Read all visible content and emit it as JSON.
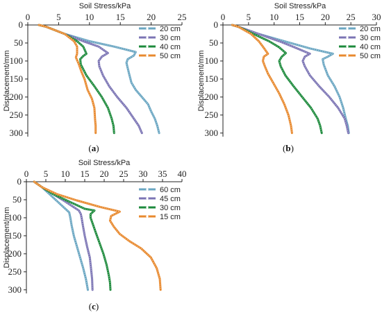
{
  "chart_data": [
    {
      "type": "line",
      "panel_label": "(a)",
      "xlabel": "Soil Stress/kPa",
      "ylabel": "Displacement/mm",
      "xlim": [
        0,
        25
      ],
      "ylim": [
        0,
        310
      ],
      "xticks": [
        0,
        5,
        10,
        15,
        20,
        25
      ],
      "yticks": [
        0,
        50,
        100,
        150,
        200,
        250,
        300
      ],
      "legend_position": "top-right",
      "series": [
        {
          "name": "20 cm",
          "color": "#6aa6c2",
          "points": [
            [
              1.8,
              0
            ],
            [
              3,
              5
            ],
            [
              6,
              25
            ],
            [
              10,
              45
            ],
            [
              14,
              60
            ],
            [
              17.5,
              75
            ],
            [
              17.2,
              85
            ],
            [
              16.2,
              95
            ],
            [
              16,
              105
            ],
            [
              16.2,
              120
            ],
            [
              16.5,
              140
            ],
            [
              16.8,
              160
            ],
            [
              17.5,
              180
            ],
            [
              18.5,
              200
            ],
            [
              19.5,
              220
            ],
            [
              20,
              240
            ],
            [
              20.6,
              260
            ],
            [
              21,
              280
            ],
            [
              21.3,
              300
            ]
          ]
        },
        {
          "name": "30 cm",
          "color": "#7b74b4",
          "points": [
            [
              1.8,
              0
            ],
            [
              3,
              5
            ],
            [
              6,
              25
            ],
            [
              9,
              45
            ],
            [
              11.5,
              60
            ],
            [
              13,
              78
            ],
            [
              12,
              88
            ],
            [
              11.5,
              100
            ],
            [
              11.6,
              115
            ],
            [
              12.2,
              140
            ],
            [
              13.2,
              170
            ],
            [
              14.5,
              200
            ],
            [
              16,
              230
            ],
            [
              17.2,
              260
            ],
            [
              18,
              280
            ],
            [
              18.5,
              300
            ]
          ]
        },
        {
          "name": "40 cm",
          "color": "#1d8a3c",
          "points": [
            [
              1.8,
              0
            ],
            [
              3,
              5
            ],
            [
              6,
              25
            ],
            [
              8,
              45
            ],
            [
              9,
              60
            ],
            [
              9.5,
              80
            ],
            [
              9,
              86
            ],
            [
              8.5,
              95
            ],
            [
              8.6,
              110
            ],
            [
              9.5,
              140
            ],
            [
              10.8,
              170
            ],
            [
              12,
              200
            ],
            [
              13,
              230
            ],
            [
              13.6,
              260
            ],
            [
              13.9,
              280
            ],
            [
              14,
              300
            ]
          ]
        },
        {
          "name": "50 cm",
          "color": "#e8892e",
          "points": [
            [
              1.8,
              0
            ],
            [
              3,
              5
            ],
            [
              6,
              25
            ],
            [
              7.5,
              45
            ],
            [
              8,
              60
            ],
            [
              8,
              80
            ],
            [
              7.8,
              90
            ],
            [
              8.3,
              110
            ],
            [
              8.7,
              130
            ],
            [
              9.2,
              150
            ],
            [
              9.7,
              180
            ],
            [
              10.4,
              205
            ],
            [
              10.8,
              230
            ],
            [
              10.9,
              260
            ],
            [
              11,
              280
            ],
            [
              11,
              300
            ]
          ]
        }
      ]
    },
    {
      "type": "line",
      "panel_label": "(b)",
      "xlabel": "Soil Stress/kPa",
      "ylabel": "Displacement/mm",
      "xlim": [
        0,
        30
      ],
      "ylim": [
        0,
        310
      ],
      "xticks": [
        0,
        5,
        10,
        15,
        20,
        25,
        30
      ],
      "yticks": [
        0,
        50,
        100,
        150,
        200,
        250,
        300
      ],
      "legend_position": "top-right",
      "series": [
        {
          "name": "20 cm",
          "color": "#6aa6c2",
          "points": [
            [
              1.8,
              0
            ],
            [
              3,
              5
            ],
            [
              7,
              25
            ],
            [
              12,
              45
            ],
            [
              17,
              65
            ],
            [
              21.5,
              80
            ],
            [
              20.5,
              88
            ],
            [
              19.5,
              95
            ],
            [
              19.7,
              110
            ],
            [
              20.5,
              140
            ],
            [
              21.8,
              170
            ],
            [
              22.8,
              200
            ],
            [
              23.5,
              230
            ],
            [
              24,
              260
            ],
            [
              24.4,
              280
            ],
            [
              24.6,
              300
            ]
          ]
        },
        {
          "name": "30 cm",
          "color": "#7b74b4",
          "points": [
            [
              1.8,
              0
            ],
            [
              3,
              5
            ],
            [
              7,
              25
            ],
            [
              11,
              45
            ],
            [
              14,
              62
            ],
            [
              17,
              80
            ],
            [
              16,
              88
            ],
            [
              15.6,
              100
            ],
            [
              16,
              115
            ],
            [
              17,
              140
            ],
            [
              18.8,
              170
            ],
            [
              20.8,
              200
            ],
            [
              22.5,
              230
            ],
            [
              23.8,
              260
            ],
            [
              24.2,
              280
            ],
            [
              24.5,
              300
            ]
          ]
        },
        {
          "name": "40 cm",
          "color": "#1d8a3c",
          "points": [
            [
              1.8,
              0
            ],
            [
              3,
              5
            ],
            [
              6,
              25
            ],
            [
              9,
              45
            ],
            [
              11,
              62
            ],
            [
              12.3,
              78
            ],
            [
              11.5,
              88
            ],
            [
              11,
              100
            ],
            [
              11.3,
              115
            ],
            [
              12.2,
              140
            ],
            [
              13.8,
              170
            ],
            [
              15.5,
              200
            ],
            [
              17.2,
              230
            ],
            [
              18.5,
              260
            ],
            [
              19,
              280
            ],
            [
              19.3,
              300
            ]
          ]
        },
        {
          "name": "50 cm",
          "color": "#e8892e",
          "points": [
            [
              1.8,
              0
            ],
            [
              3,
              5
            ],
            [
              5.5,
              25
            ],
            [
              7,
              45
            ],
            [
              7.8,
              60
            ],
            [
              8.8,
              80
            ],
            [
              8,
              88
            ],
            [
              7.8,
              100
            ],
            [
              8.2,
              115
            ],
            [
              8.8,
              135
            ],
            [
              9.8,
              160
            ],
            [
              11,
              190
            ],
            [
              12,
              220
            ],
            [
              12.8,
              250
            ],
            [
              13.3,
              280
            ],
            [
              13.5,
              300
            ]
          ]
        }
      ]
    },
    {
      "type": "line",
      "panel_label": "(c)",
      "xlabel": "Soil Stress/kPa",
      "ylabel": "Displacement/mm",
      "xlim": [
        0,
        40
      ],
      "ylim": [
        0,
        310
      ],
      "xticks": [
        0,
        5,
        10,
        15,
        20,
        25,
        30,
        35,
        40
      ],
      "yticks": [
        0,
        50,
        100,
        150,
        200,
        250,
        300
      ],
      "legend_position": "top-right",
      "series": [
        {
          "name": "60 cm",
          "color": "#6aa6c2",
          "points": [
            [
              2,
              0
            ],
            [
              4,
              15
            ],
            [
              6,
              35
            ],
            [
              8.5,
              60
            ],
            [
              11,
              85
            ],
            [
              11.3,
              100
            ],
            [
              11.6,
              120
            ],
            [
              12.2,
              150
            ],
            [
              13,
              180
            ],
            [
              13.8,
              210
            ],
            [
              14.6,
              240
            ],
            [
              15.3,
              270
            ],
            [
              15.8,
              300
            ]
          ]
        },
        {
          "name": "45 cm",
          "color": "#7b74b4",
          "points": [
            [
              2,
              0
            ],
            [
              4,
              15
            ],
            [
              7,
              35
            ],
            [
              10,
              55
            ],
            [
              13.5,
              80
            ],
            [
              14,
              90
            ],
            [
              14.2,
              100
            ],
            [
              14.5,
              120
            ],
            [
              15,
              150
            ],
            [
              15.6,
              180
            ],
            [
              16.3,
              210
            ],
            [
              16.6,
              240
            ],
            [
              16.9,
              270
            ],
            [
              17,
              300
            ]
          ]
        },
        {
          "name": "30 cm",
          "color": "#1d8a3c",
          "points": [
            [
              2,
              0
            ],
            [
              4,
              15
            ],
            [
              7,
              35
            ],
            [
              11,
              55
            ],
            [
              15,
              75
            ],
            [
              17.5,
              80
            ],
            [
              16.5,
              90
            ],
            [
              16.5,
              100
            ],
            [
              17,
              115
            ],
            [
              17.8,
              140
            ],
            [
              18.8,
              170
            ],
            [
              19.8,
              200
            ],
            [
              20.6,
              230
            ],
            [
              21.2,
              260
            ],
            [
              21.5,
              280
            ],
            [
              21.6,
              300
            ]
          ]
        },
        {
          "name": "15 cm",
          "color": "#e8892e",
          "points": [
            [
              2,
              0
            ],
            [
              4,
              15
            ],
            [
              8,
              35
            ],
            [
              13,
              52
            ],
            [
              19,
              70
            ],
            [
              24,
              83
            ],
            [
              21.8,
              95
            ],
            [
              21.5,
              108
            ],
            [
              22.5,
              125
            ],
            [
              24,
              145
            ],
            [
              26.5,
              165
            ],
            [
              29.5,
              185
            ],
            [
              32,
              210
            ],
            [
              33.5,
              240
            ],
            [
              34.3,
              270
            ],
            [
              34.5,
              300
            ]
          ]
        }
      ]
    }
  ]
}
